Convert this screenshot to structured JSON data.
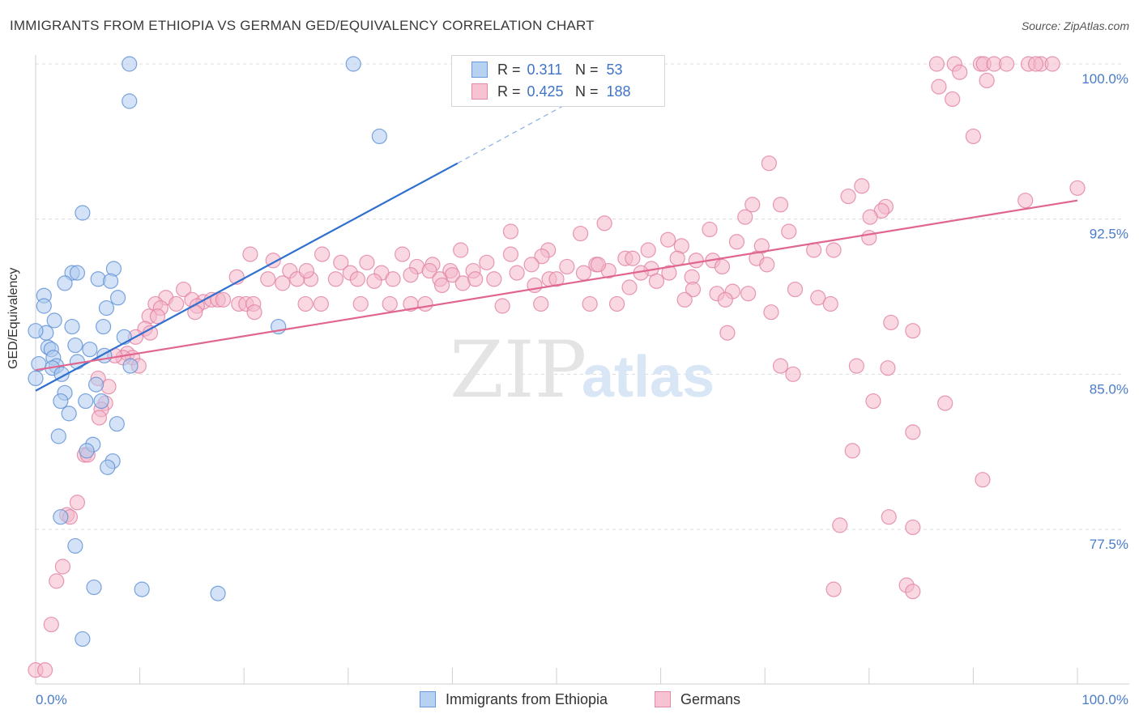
{
  "title": "IMMIGRANTS FROM ETHIOPIA VS GERMAN GED/EQUIVALENCY CORRELATION CHART",
  "source": "Source: ZipAtlas.com",
  "watermark": {
    "zip": "ZIP",
    "atlas": "atlas"
  },
  "legend": {
    "series1": {
      "r_label": "R =",
      "r_value": "0.311",
      "n_label": "N =",
      "n_value": "53"
    },
    "series2": {
      "r_label": "R =",
      "r_value": "0.425",
      "n_label": "N =",
      "n_value": "188"
    }
  },
  "colors": {
    "blue_fill": "#aecbee",
    "blue_stroke": "#5b8fd4",
    "blue_line": "#2f6fcf",
    "pink_fill": "#f4b8cb",
    "pink_stroke": "#e17fa2",
    "pink_line": "#e0668f",
    "tick_label": "#4a7cc9",
    "grid": "#dcdcdc"
  },
  "chart_data": {
    "type": "scatter",
    "title": "IMMIGRANTS FROM ETHIOPIA VS GERMAN GED/EQUIVALENCY CORRELATION CHART",
    "xlabel": "",
    "ylabel": "GED/Equivalency",
    "xlim": [
      0,
      100
    ],
    "ylim": [
      70.7,
      100.8
    ],
    "x_tick_labels": [
      "0.0%",
      "100.0%"
    ],
    "y_ticks": [
      77.5,
      85.0,
      92.5,
      100.0
    ],
    "y_tick_labels": [
      "77.5%",
      "85.0%",
      "92.5%",
      "100.0%"
    ],
    "grid": true,
    "legend_position": "top-center",
    "series": [
      {
        "name": "Immigrants from Ethiopia",
        "color": "#aecbee",
        "trend": {
          "x0": 0,
          "y0": 84.2,
          "x1": 40.5,
          "y1": 95.2,
          "dashed_to_x": 55.5,
          "dashed_to_y": 99.3
        },
        "points": [
          [
            9.0,
            100.0
          ],
          [
            30.5,
            100.0
          ],
          [
            9.0,
            98.2
          ],
          [
            33.0,
            96.5
          ],
          [
            4.5,
            92.8
          ],
          [
            3.5,
            89.9
          ],
          [
            4.0,
            89.9
          ],
          [
            7.5,
            90.1
          ],
          [
            6.0,
            89.6
          ],
          [
            7.2,
            89.5
          ],
          [
            2.8,
            89.4
          ],
          [
            0.8,
            88.8
          ],
          [
            7.9,
            88.7
          ],
          [
            0.8,
            88.3
          ],
          [
            6.8,
            88.2
          ],
          [
            1.8,
            87.6
          ],
          [
            3.5,
            87.3
          ],
          [
            6.5,
            87.3
          ],
          [
            1.0,
            87.0
          ],
          [
            8.5,
            86.8
          ],
          [
            1.2,
            86.3
          ],
          [
            5.2,
            86.2
          ],
          [
            1.5,
            86.2
          ],
          [
            3.8,
            86.4
          ],
          [
            6.6,
            85.9
          ],
          [
            1.7,
            85.8
          ],
          [
            4.0,
            85.6
          ],
          [
            2.0,
            85.4
          ],
          [
            9.1,
            85.4
          ],
          [
            1.6,
            85.3
          ],
          [
            2.5,
            85.0
          ],
          [
            0.0,
            84.8
          ],
          [
            5.8,
            84.5
          ],
          [
            2.8,
            84.1
          ],
          [
            6.3,
            83.7
          ],
          [
            2.4,
            83.7
          ],
          [
            4.8,
            83.7
          ],
          [
            3.2,
            83.1
          ],
          [
            7.8,
            82.6
          ],
          [
            2.2,
            82.0
          ],
          [
            5.5,
            81.6
          ],
          [
            4.9,
            81.3
          ],
          [
            7.4,
            80.8
          ],
          [
            6.9,
            80.5
          ],
          [
            2.4,
            78.1
          ],
          [
            3.8,
            76.7
          ],
          [
            5.6,
            74.7
          ],
          [
            10.2,
            74.6
          ],
          [
            17.5,
            74.4
          ],
          [
            4.5,
            72.2
          ],
          [
            23.3,
            87.3
          ],
          [
            0.0,
            87.1
          ],
          [
            0.3,
            85.5
          ]
        ]
      },
      {
        "name": "Germans",
        "color": "#f4b8cb",
        "trend": {
          "x0": 0,
          "y0": 85.2,
          "x1": 100,
          "y1": 93.4
        },
        "points": [
          [
            86.5,
            100.0
          ],
          [
            88.2,
            100.0
          ],
          [
            90.7,
            100.0
          ],
          [
            91.0,
            100.0
          ],
          [
            92.0,
            100.0
          ],
          [
            93.2,
            100.0
          ],
          [
            95.3,
            100.0
          ],
          [
            96.5,
            100.0
          ],
          [
            97.6,
            100.0
          ],
          [
            96.0,
            100.0
          ],
          [
            88.7,
            99.6
          ],
          [
            91.3,
            99.2
          ],
          [
            86.7,
            98.9
          ],
          [
            88.0,
            98.3
          ],
          [
            90.0,
            96.5
          ],
          [
            70.4,
            95.2
          ],
          [
            100.0,
            94.0
          ],
          [
            79.3,
            94.1
          ],
          [
            78.0,
            93.6
          ],
          [
            95.0,
            93.4
          ],
          [
            68.8,
            93.2
          ],
          [
            71.5,
            93.2
          ],
          [
            81.6,
            93.1
          ],
          [
            81.2,
            92.9
          ],
          [
            80.1,
            92.6
          ],
          [
            68.1,
            92.6
          ],
          [
            54.6,
            92.3
          ],
          [
            64.7,
            92.0
          ],
          [
            72.3,
            91.9
          ],
          [
            45.6,
            91.9
          ],
          [
            52.3,
            91.8
          ],
          [
            80.0,
            91.6
          ],
          [
            60.7,
            91.5
          ],
          [
            67.3,
            91.4
          ],
          [
            62.0,
            91.2
          ],
          [
            69.7,
            91.2
          ],
          [
            40.8,
            91.0
          ],
          [
            49.2,
            91.0
          ],
          [
            58.8,
            91.0
          ],
          [
            74.7,
            91.0
          ],
          [
            76.6,
            91.0
          ],
          [
            20.6,
            90.8
          ],
          [
            27.5,
            90.8
          ],
          [
            35.2,
            90.8
          ],
          [
            45.6,
            90.8
          ],
          [
            48.6,
            90.7
          ],
          [
            56.6,
            90.6
          ],
          [
            61.6,
            90.6
          ],
          [
            57.3,
            90.6
          ],
          [
            69.2,
            90.6
          ],
          [
            63.4,
            90.5
          ],
          [
            65.0,
            90.5
          ],
          [
            29.3,
            90.4
          ],
          [
            31.8,
            90.4
          ],
          [
            43.3,
            90.4
          ],
          [
            38.1,
            90.3
          ],
          [
            47.6,
            90.3
          ],
          [
            53.8,
            90.3
          ],
          [
            36.6,
            90.2
          ],
          [
            51.0,
            90.2
          ],
          [
            65.9,
            90.2
          ],
          [
            70.2,
            90.3
          ],
          [
            37.8,
            90.0
          ],
          [
            39.8,
            90.0
          ],
          [
            42.0,
            90.0
          ],
          [
            55.0,
            90.0
          ],
          [
            59.1,
            90.1
          ],
          [
            24.4,
            90.0
          ],
          [
            30.2,
            89.9
          ],
          [
            33.2,
            89.9
          ],
          [
            46.2,
            89.9
          ],
          [
            52.6,
            89.9
          ],
          [
            58.1,
            89.9
          ],
          [
            60.8,
            89.9
          ],
          [
            36.0,
            89.8
          ],
          [
            40.0,
            89.8
          ],
          [
            63.0,
            89.7
          ],
          [
            19.3,
            89.7
          ],
          [
            22.3,
            89.6
          ],
          [
            26.4,
            89.6
          ],
          [
            28.8,
            89.6
          ],
          [
            34.3,
            89.6
          ],
          [
            38.8,
            89.6
          ],
          [
            44.0,
            89.6
          ],
          [
            49.3,
            89.6
          ],
          [
            25.1,
            89.6
          ],
          [
            30.9,
            89.6
          ],
          [
            50.0,
            89.6
          ],
          [
            32.5,
            89.5
          ],
          [
            23.7,
            89.4
          ],
          [
            41.0,
            89.4
          ],
          [
            39.0,
            89.3
          ],
          [
            47.9,
            89.3
          ],
          [
            66.9,
            89.0
          ],
          [
            72.9,
            89.1
          ],
          [
            63.1,
            89.1
          ],
          [
            65.4,
            88.9
          ],
          [
            68.4,
            88.9
          ],
          [
            14.2,
            89.1
          ],
          [
            12.5,
            88.7
          ],
          [
            15.0,
            88.6
          ],
          [
            16.1,
            88.5
          ],
          [
            16.9,
            88.6
          ],
          [
            17.5,
            88.6
          ],
          [
            18.0,
            88.6
          ],
          [
            11.5,
            88.4
          ],
          [
            13.5,
            88.4
          ],
          [
            15.5,
            88.3
          ],
          [
            19.5,
            88.4
          ],
          [
            20.2,
            88.4
          ],
          [
            20.9,
            88.4
          ],
          [
            25.9,
            88.4
          ],
          [
            27.4,
            88.4
          ],
          [
            31.2,
            88.4
          ],
          [
            36.0,
            88.4
          ],
          [
            37.4,
            88.4
          ],
          [
            34.0,
            88.4
          ],
          [
            66.2,
            88.6
          ],
          [
            75.1,
            88.7
          ],
          [
            76.3,
            88.4
          ],
          [
            55.8,
            88.4
          ],
          [
            48.5,
            88.4
          ],
          [
            12.0,
            88.2
          ],
          [
            15.3,
            88.0
          ],
          [
            21.0,
            88.0
          ],
          [
            10.9,
            87.8
          ],
          [
            70.6,
            88.0
          ],
          [
            11.7,
            87.8
          ],
          [
            10.5,
            87.2
          ],
          [
            11.0,
            87.0
          ],
          [
            84.2,
            87.1
          ],
          [
            82.1,
            87.5
          ],
          [
            66.4,
            87.0
          ],
          [
            9.6,
            86.8
          ],
          [
            8.8,
            86.0
          ],
          [
            9.3,
            85.8
          ],
          [
            8.4,
            85.8
          ],
          [
            7.6,
            85.9
          ],
          [
            9.9,
            85.4
          ],
          [
            71.5,
            85.4
          ],
          [
            78.8,
            85.4
          ],
          [
            81.8,
            85.3
          ],
          [
            72.7,
            85.0
          ],
          [
            6.0,
            84.8
          ],
          [
            7.0,
            84.4
          ],
          [
            80.4,
            83.7
          ],
          [
            87.3,
            83.6
          ],
          [
            6.7,
            83.6
          ],
          [
            6.3,
            83.3
          ],
          [
            6.1,
            82.9
          ],
          [
            84.2,
            82.2
          ],
          [
            78.4,
            81.3
          ],
          [
            4.7,
            81.1
          ],
          [
            5.0,
            81.1
          ],
          [
            90.9,
            79.9
          ],
          [
            4.0,
            78.8
          ],
          [
            3.0,
            78.2
          ],
          [
            3.3,
            78.1
          ],
          [
            81.9,
            78.1
          ],
          [
            77.2,
            77.7
          ],
          [
            84.2,
            77.6
          ],
          [
            2.6,
            75.7
          ],
          [
            2.0,
            75.0
          ],
          [
            76.6,
            74.6
          ],
          [
            83.6,
            74.8
          ],
          [
            84.2,
            74.5
          ],
          [
            1.5,
            72.9
          ],
          [
            0.0,
            70.7
          ],
          [
            0.9,
            70.7
          ],
          [
            59.6,
            89.5
          ],
          [
            62.3,
            88.6
          ],
          [
            57.0,
            89.2
          ],
          [
            44.8,
            88.3
          ],
          [
            53.2,
            88.4
          ],
          [
            42.2,
            89.6
          ],
          [
            54.0,
            90.3
          ],
          [
            26.0,
            90.0
          ],
          [
            22.8,
            90.5
          ]
        ]
      }
    ]
  }
}
